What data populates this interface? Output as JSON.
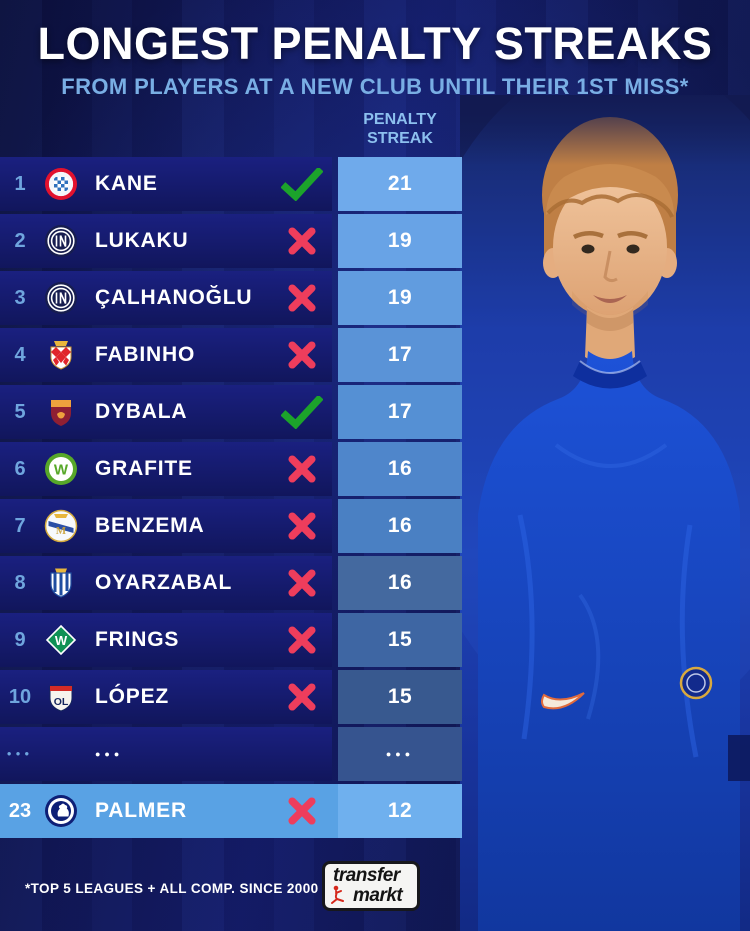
{
  "page": {
    "title": "LONGEST PENALTY STREAKS",
    "subtitle": "FROM PLAYERS AT A NEW CLUB UNTIL THEIR 1ST MISS*"
  },
  "column_header": {
    "line1": "PENALTY",
    "line2": "STREAK"
  },
  "table": {
    "rows": [
      {
        "rank": "1",
        "club": "bayern",
        "club_name": "Bayern Munich",
        "player": "KANE",
        "result": "scored",
        "streak": "21",
        "highlight": false
      },
      {
        "rank": "2",
        "club": "inter",
        "club_name": "Inter Milan",
        "player": "LUKAKU",
        "result": "missed",
        "streak": "19",
        "highlight": false
      },
      {
        "rank": "3",
        "club": "inter",
        "club_name": "Inter Milan",
        "player": "ÇALHANOĞLU",
        "result": "missed",
        "streak": "19",
        "highlight": false
      },
      {
        "rank": "4",
        "club": "monaco",
        "club_name": "AS Monaco",
        "player": "FABINHO",
        "result": "missed",
        "streak": "17",
        "highlight": false
      },
      {
        "rank": "5",
        "club": "roma",
        "club_name": "AS Roma",
        "player": "DYBALA",
        "result": "scored",
        "streak": "17",
        "highlight": false
      },
      {
        "rank": "6",
        "club": "wolfsburg",
        "club_name": "VfL Wolfsburg",
        "player": "GRAFITE",
        "result": "missed",
        "streak": "16",
        "highlight": false
      },
      {
        "rank": "7",
        "club": "madrid",
        "club_name": "Real Madrid",
        "player": "BENZEMA",
        "result": "missed",
        "streak": "16",
        "highlight": false
      },
      {
        "rank": "8",
        "club": "sociedad",
        "club_name": "Real Sociedad",
        "player": "OYARZABAL",
        "result": "missed",
        "streak": "16",
        "highlight": false
      },
      {
        "rank": "9",
        "club": "werder",
        "club_name": "Werder Bremen",
        "player": "FRINGS",
        "result": "missed",
        "streak": "15",
        "highlight": false
      },
      {
        "rank": "10",
        "club": "lyon",
        "club_name": "Olympique Lyonnais",
        "player": "LÓPEZ",
        "result": "missed",
        "streak": "15",
        "highlight": false
      },
      {
        "rank": "...",
        "club": null,
        "club_name": "",
        "player": "...",
        "result": null,
        "streak": "...",
        "highlight": false
      },
      {
        "rank": "23",
        "club": "chelsea",
        "club_name": "Chelsea",
        "player": "PALMER",
        "result": "missed",
        "streak": "12",
        "highlight": true
      }
    ]
  },
  "footer": {
    "note": "*TOP 5 LEAGUES + ALL COMP. SINCE 2000",
    "logo": {
      "line1": "transfer",
      "line2": "markt"
    }
  },
  "colors": {
    "title": "#FFFFFF",
    "subtitle_blue": "#79AEE4",
    "column_header_blue": "#8CC0EF",
    "rank_blue": "#6FA5DE",
    "row_bg": "#151B70",
    "highlight_row": "#59A2E4",
    "check_green": "#1CA32B",
    "cross_red": "#EE3D5C",
    "cell_colors": [
      "#6FAAEB",
      "#68A3E6",
      "#619CDF",
      "#5A93D7",
      "#5590D4",
      "#4F86CB",
      "#4A80C3",
      "#44699F",
      "#3E66A3",
      "#38598F",
      "#36548F",
      "#6FB0EE"
    ]
  },
  "chart_data": {
    "type": "table",
    "title": "LONGEST PENALTY STREAKS",
    "subtitle": "FROM PLAYERS AT A NEW CLUB UNTIL THEIR 1ST MISS*",
    "columns": [
      "Rank",
      "Club",
      "Player",
      "Streak ended with miss",
      "Penalty streak"
    ],
    "rows": [
      [
        1,
        "Bayern Munich",
        "KANE",
        "no",
        21
      ],
      [
        2,
        "Inter Milan",
        "LUKAKU",
        "yes",
        19
      ],
      [
        3,
        "Inter Milan",
        "ÇALHANOĞLU",
        "yes",
        19
      ],
      [
        4,
        "AS Monaco",
        "FABINHO",
        "yes",
        17
      ],
      [
        5,
        "AS Roma",
        "DYBALA",
        "no",
        17
      ],
      [
        6,
        "VfL Wolfsburg",
        "GRAFITE",
        "yes",
        16
      ],
      [
        7,
        "Real Madrid",
        "BENZEMA",
        "yes",
        16
      ],
      [
        8,
        "Real Sociedad",
        "OYARZABAL",
        "yes",
        16
      ],
      [
        9,
        "Werder Bremen",
        "FRINGS",
        "yes",
        15
      ],
      [
        10,
        "Olympique Lyonnais",
        "LÓPEZ",
        "yes",
        15
      ],
      [
        "...",
        "",
        "...",
        "",
        ""
      ],
      [
        23,
        "Chelsea",
        "PALMER",
        "yes",
        12
      ]
    ],
    "footnote": "*TOP 5 LEAGUES + ALL COMP. SINCE 2000"
  }
}
